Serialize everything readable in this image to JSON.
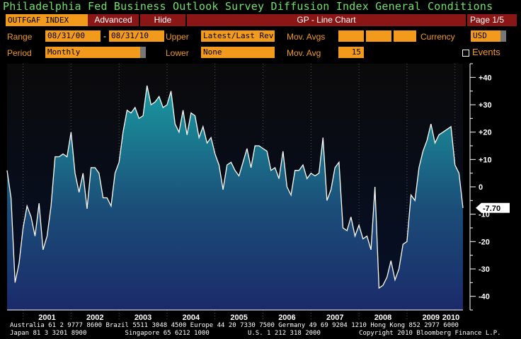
{
  "title": "Philadelphia Fed Business Outlook Survey Diffusion Index General Conditions",
  "toolbar": {
    "ticker": "OUTFGAF INDEX",
    "advanced": "Advanced",
    "hide": "Hide",
    "chart_type": "GP - Line Chart",
    "page": "Page 1/5"
  },
  "controls": {
    "range_label": "Range",
    "range_start": "08/31/00",
    "range_dash": "-",
    "range_end": "08/31/10",
    "upper_label": "Upper",
    "upper_value": "Latest/Last Rev",
    "mov_avgs_label": "Mov. Avgs",
    "currency_label": "Currency",
    "currency_value": "USD",
    "period_label": "Period",
    "period_value": "Monthly",
    "lower_label": "Lower",
    "lower_value": "None",
    "mov_avg_label": "Mov. Avg",
    "mov_avg_value": "15",
    "events_label": "Events"
  },
  "chart_data": {
    "type": "area",
    "x_labels": [
      "2001",
      "2002",
      "2003",
      "2004",
      "2005",
      "2006",
      "2007",
      "2008",
      "2009",
      "2010"
    ],
    "y_ticks": [
      40,
      30,
      20,
      10,
      0,
      -10,
      -20,
      -30,
      -40
    ],
    "ylim": [
      -45,
      45
    ],
    "last_value_label": "-7.70",
    "series": [
      {
        "values": [
          6,
          -4,
          -35,
          -28,
          -15,
          -7,
          -11,
          -18,
          -6,
          -23,
          -18,
          -7,
          11,
          11,
          12,
          11,
          20,
          5,
          -2,
          5,
          -8,
          7,
          7,
          5,
          -4,
          -4,
          -7,
          5,
          9,
          20,
          28,
          27,
          29,
          25,
          26,
          37,
          30,
          31,
          33,
          29,
          30,
          35,
          23,
          20,
          28,
          19,
          27,
          26,
          18,
          22,
          16,
          18,
          12,
          8,
          -1,
          8,
          9,
          6,
          4,
          9,
          14,
          7,
          15,
          15,
          14,
          13,
          6,
          7,
          3,
          13,
          0,
          -3,
          6,
          6,
          8,
          3,
          5,
          4,
          5,
          18,
          -5,
          -1,
          7,
          9,
          -15,
          -16,
          -11,
          -18,
          -14,
          -19,
          -18,
          -23,
          0,
          -37,
          -36,
          -33,
          -27,
          -34,
          -30,
          -21,
          -20,
          -3,
          -5,
          7,
          13,
          17,
          23,
          16,
          19,
          20,
          21,
          22,
          8,
          5,
          -7.7
        ],
        "color": "#ffffff"
      }
    ],
    "grid": "vertical dotted"
  },
  "footer": {
    "line1": "Australia 61 2 9777 8600 Brazil 5511 3048 4500 Europe 44 20 7330 7500 Germany 49 69 9204 1210 Hong Kong 852 2977 6000",
    "line2": "Japan 81 3 3201 8900          Singapore 65 6212 1000          U.S. 1 212 318 2000          Copyright 2010 Bloomberg Finance L.P."
  }
}
